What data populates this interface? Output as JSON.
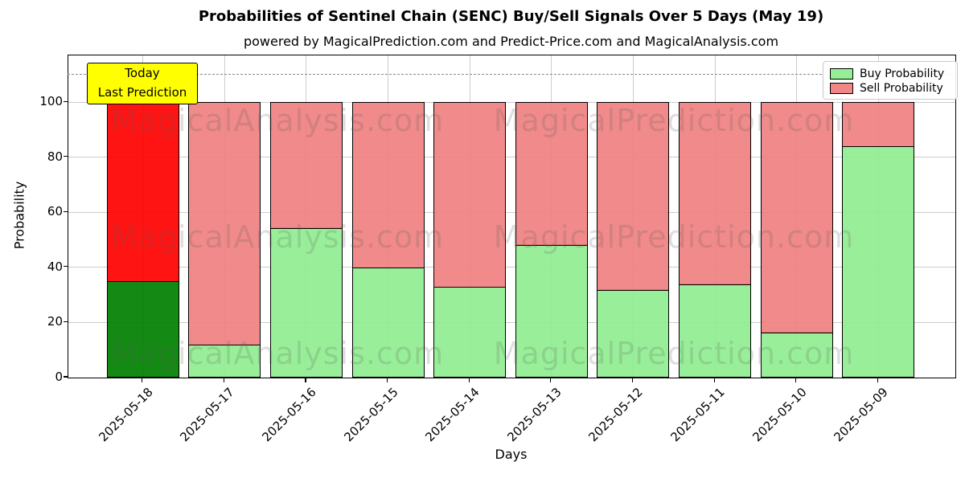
{
  "title": "Probabilities of Sentinel Chain (SENC) Buy/Sell Signals Over 5 Days (May 19)",
  "subtitle": "powered by MagicalPrediction.com and Predict-Price.com and MagicalAnalysis.com",
  "annotation": {
    "line1": "Today",
    "line2": "Last Prediction",
    "bg_color": "#ffff00"
  },
  "legend": [
    {
      "label": "Buy Probability",
      "color": "#90ee90"
    },
    {
      "label": "Sell Probability",
      "color": "#f08080"
    }
  ],
  "watermarks": {
    "left_text": "MagicalAnalysis.com",
    "right_text": "MagicalPrediction.com"
  },
  "chart_data": {
    "type": "bar",
    "stacked": true,
    "title": "Probabilities of Sentinel Chain (SENC) Buy/Sell Signals Over 5 Days (May 19)",
    "xlabel": "Days",
    "ylabel": "Probability",
    "categories": [
      "2025-05-18",
      "2025-05-17",
      "2025-05-16",
      "2025-05-15",
      "2025-05-14",
      "2025-05-13",
      "2025-05-12",
      "2025-05-11",
      "2025-05-10",
      "2025-05-09"
    ],
    "series": [
      {
        "name": "Buy Probability",
        "color": "#90ee90",
        "values": [
          35,
          12,
          54.5,
          40,
          33,
          48.3,
          32,
          34,
          16.5,
          84
        ]
      },
      {
        "name": "Sell Probability",
        "color": "#f08080",
        "values": [
          65,
          88,
          45.5,
          60,
          67,
          51.7,
          68,
          66,
          83.5,
          16
        ]
      }
    ],
    "highlight_first_bar": {
      "buy_color": "#008000",
      "sell_color": "#ff0000",
      "label": "Today Last Prediction"
    },
    "yticks": [
      0,
      20,
      40,
      60,
      80,
      100
    ],
    "ylim": [
      0,
      117
    ],
    "dashed_line_y": 110,
    "grid": true,
    "legend_position": "upper right"
  }
}
